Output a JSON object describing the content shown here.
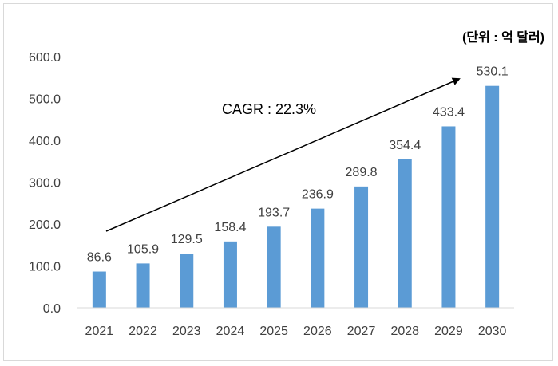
{
  "chart_data": {
    "type": "bar",
    "categories": [
      "2021",
      "2022",
      "2023",
      "2024",
      "2025",
      "2026",
      "2027",
      "2028",
      "2029",
      "2030"
    ],
    "values": [
      86.6,
      105.9,
      129.5,
      158.4,
      193.7,
      236.9,
      289.8,
      354.4,
      433.4,
      530.1
    ],
    "data_labels": [
      "86.6",
      "105.9",
      "129.5",
      "158.4",
      "193.7",
      "236.9",
      "289.8",
      "354.4",
      "433.4",
      "530.1"
    ],
    "y_ticks": [
      "0.0",
      "100.0",
      "200.0",
      "300.0",
      "400.0",
      "500.0",
      "600.0"
    ],
    "ylim": [
      0,
      600
    ],
    "grid": false,
    "bar_color": "#5b9bd5",
    "unit_label": "(단위 : 억 달러)",
    "annotation": "CAGR : 22.3%"
  }
}
